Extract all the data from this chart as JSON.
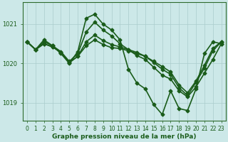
{
  "bg_color": "#cce8e8",
  "grid_color": "#aacccc",
  "line_color": "#1a5c1a",
  "title": "Graphe pression niveau de la mer (hPa)",
  "ylabel_ticks": [
    1019,
    1020,
    1021
  ],
  "xlim": [
    -0.5,
    23.5
  ],
  "ylim": [
    1018.55,
    1021.55
  ],
  "xticks": [
    0,
    1,
    2,
    3,
    4,
    5,
    6,
    7,
    8,
    9,
    10,
    11,
    12,
    13,
    14,
    15,
    16,
    17,
    18,
    19,
    20,
    21,
    22,
    23
  ],
  "series": [
    {
      "x": [
        0,
        1,
        2,
        3,
        4,
        5,
        6,
        7,
        8,
        9,
        10,
        11,
        12,
        13,
        14,
        15,
        16,
        17,
        18,
        19,
        20,
        21,
        22,
        23
      ],
      "y": [
        1020.55,
        1020.35,
        1020.6,
        1020.45,
        1020.25,
        1020.0,
        1020.3,
        1021.15,
        1021.25,
        1021.0,
        1020.85,
        1020.6,
        1019.85,
        1019.5,
        1019.35,
        1018.95,
        1018.7,
        1019.3,
        1018.85,
        1018.8,
        1019.35,
        1020.25,
        1020.55,
        1020.5
      ],
      "color": "#1a5c1a",
      "lw": 1.2,
      "marker": "D",
      "ms": 2.5,
      "zorder": 5
    },
    {
      "x": [
        0,
        1,
        2,
        3,
        4,
        5,
        6,
        7,
        8,
        9,
        10,
        11,
        12,
        13,
        14,
        15,
        16,
        17,
        18,
        19,
        20,
        21,
        22,
        23
      ],
      "y": [
        1020.55,
        1020.35,
        1020.55,
        1020.45,
        1020.3,
        1020.05,
        1020.25,
        1020.8,
        1021.05,
        1020.85,
        1020.7,
        1020.5,
        1020.35,
        1020.2,
        1020.1,
        1019.9,
        1019.7,
        1019.6,
        1019.3,
        1019.15,
        1019.4,
        1019.75,
        1020.1,
        1020.5
      ],
      "color": "#1a5c1a",
      "lw": 1.2,
      "marker": "D",
      "ms": 2.5,
      "zorder": 4
    },
    {
      "x": [
        0,
        1,
        2,
        3,
        4,
        5,
        6,
        7,
        8,
        9,
        10,
        11,
        12,
        13,
        14,
        15,
        16,
        17,
        18,
        19,
        20,
        21,
        22,
        23
      ],
      "y": [
        1020.55,
        1020.35,
        1020.5,
        1020.42,
        1020.28,
        1020.02,
        1020.18,
        1020.55,
        1020.72,
        1020.58,
        1020.48,
        1020.42,
        1020.35,
        1020.28,
        1020.18,
        1020.05,
        1019.92,
        1019.78,
        1019.45,
        1019.25,
        1019.55,
        1019.95,
        1020.38,
        1020.55
      ],
      "color": "#1a5c1a",
      "lw": 1.2,
      "marker": "D",
      "ms": 2.5,
      "zorder": 3
    },
    {
      "x": [
        0,
        1,
        2,
        3,
        4,
        5,
        6,
        7,
        8,
        9,
        10,
        11,
        12,
        13,
        14,
        15,
        16,
        17,
        18,
        19,
        20,
        21,
        22,
        23
      ],
      "y": [
        1020.55,
        1020.35,
        1020.5,
        1020.42,
        1020.28,
        1020.02,
        1020.18,
        1020.45,
        1020.6,
        1020.48,
        1020.4,
        1020.38,
        1020.32,
        1020.25,
        1020.18,
        1020.02,
        1019.85,
        1019.72,
        1019.38,
        1019.18,
        1019.52,
        1019.88,
        1020.32,
        1020.55
      ],
      "color": "#1a5c1a",
      "lw": 1.2,
      "marker": "D",
      "ms": 2.5,
      "zorder": 2
    }
  ],
  "title_fontsize": 6.5,
  "tick_fontsize": 5.5,
  "ytick_fontsize": 6.0
}
